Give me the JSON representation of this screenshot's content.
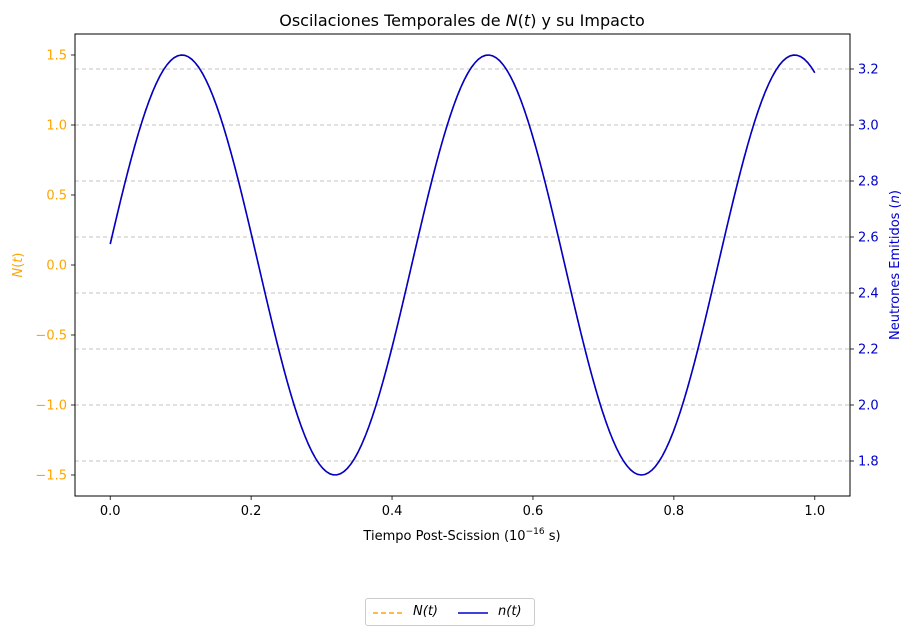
{
  "chart_data": {
    "type": "line",
    "title": "Oscilaciones Temporales de N(t) y su Impacto",
    "xlabel": "Tiempo Post-Scission (10⁻¹⁶ s)",
    "ylabel_left": "N(t)",
    "ylabel_right": "Neutrones Emitidos (n)",
    "xlim": [
      -0.05,
      1.05
    ],
    "ylim_left": [
      -1.65,
      1.65
    ],
    "ylim_right": [
      1.675,
      3.325
    ],
    "xticks": [
      "0.0",
      "0.2",
      "0.4",
      "0.6",
      "0.8",
      "1.0"
    ],
    "yticks_left": [
      "−1.5",
      "−1.0",
      "−0.5",
      "0.0",
      "0.5",
      "1.0",
      "1.5"
    ],
    "yticks_right": [
      "1.8",
      "2.0",
      "2.2",
      "2.4",
      "2.6",
      "2.8",
      "3.0",
      "3.2"
    ],
    "grid": "y-dashed",
    "legend_placement": "bottom-center",
    "series": [
      {
        "name": "N(t)",
        "axis": "left",
        "style": "dashed",
        "color": "#FFA500",
        "function": "1.5*sin(2*pi*2.3*t + 0.1)"
      },
      {
        "name": "n(t)",
        "axis": "right",
        "style": "solid",
        "color": "#0000CD",
        "function": "2.5 + 0.75*sin(2*pi*2.3*t + 0.1)"
      }
    ],
    "x": {
      "start": 0,
      "end": 1,
      "samples": 200
    },
    "colors": {
      "left_axis": "#FFA500",
      "right_axis": "#0000CD"
    }
  }
}
